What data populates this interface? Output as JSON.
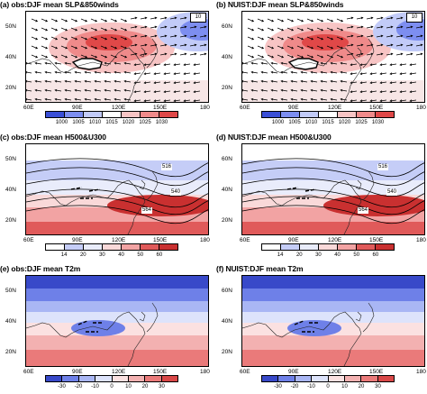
{
  "panels": [
    {
      "id": "a",
      "title": "(a) obs:DJF mean SLP&850winds",
      "type": "slp",
      "ylabels": [
        "50N",
        "40N",
        "20N"
      ],
      "xlabels": [
        "60E",
        "90E",
        "120E",
        "150E",
        "180"
      ],
      "ref_vector": "10",
      "cbar_labels": [
        "1000",
        "1005",
        "1010",
        "1015",
        "1020",
        "1025",
        "1030"
      ]
    },
    {
      "id": "b",
      "title": "(b) NUIST:DJF mean SLP&850winds",
      "type": "slp",
      "ylabels": [
        "60N",
        "40N",
        "20N"
      ],
      "xlabels": [
        "60E",
        "90E",
        "120E",
        "150E",
        "180"
      ],
      "ref_vector": "10",
      "cbar_labels": [
        "1000",
        "1005",
        "1010",
        "1015",
        "1020",
        "1025",
        "1030"
      ]
    },
    {
      "id": "c",
      "title": "(c) obs:DJF mean H500&U300",
      "type": "h500",
      "ylabels": [
        "50N",
        "40N",
        "20N"
      ],
      "xlabels": [
        "60E",
        "90E",
        "120E",
        "150E",
        "180"
      ],
      "contour_labels": [
        "516",
        "540",
        "564"
      ],
      "cbar_labels": [
        "14",
        "20",
        "30",
        "40",
        "50",
        "60"
      ]
    },
    {
      "id": "d",
      "title": "(d) NUIST:DJF mean H500&U300",
      "type": "h500",
      "ylabels": [
        "60N",
        "40N",
        "20N"
      ],
      "xlabels": [
        "60E",
        "90E",
        "120E",
        "150E",
        "180"
      ],
      "contour_labels": [
        "516",
        "540",
        "564"
      ],
      "cbar_labels": [
        "14",
        "20",
        "30",
        "40",
        "50",
        "60"
      ]
    },
    {
      "id": "e",
      "title": "(e) obs:DJF mean T2m",
      "type": "t2m",
      "ylabels": [
        "50N",
        "40N",
        "20N"
      ],
      "xlabels": [
        "60E",
        "90E",
        "120E",
        "150E",
        "180"
      ],
      "cbar_labels": [
        "-30",
        "-20",
        "-10",
        "0",
        "10",
        "20",
        "30"
      ]
    },
    {
      "id": "f",
      "title": "(f) NUIST:DJF mean T2m",
      "type": "t2m",
      "ylabels": [
        "60N",
        "40N",
        "20N"
      ],
      "xlabels": [
        "60E",
        "90E",
        "120E",
        "150E",
        "180"
      ],
      "cbar_labels": [
        "-30",
        "-20",
        "-10",
        "0",
        "10",
        "20",
        "30"
      ]
    }
  ],
  "colors": {
    "slp": [
      "#3a4fd6",
      "#7d8ef0",
      "#c2cbf8",
      "#ffffff",
      "#f7c4c4",
      "#ef8a8a",
      "#e04848"
    ],
    "h500": [
      "#ffffff",
      "#c5cdf7",
      "#e9ecfb",
      "#f9d9d9",
      "#f2a3a3",
      "#e05a5a",
      "#c93030"
    ],
    "t2m": [
      "#3849c9",
      "#6e80e8",
      "#a9b6f4",
      "#dde3fb",
      "#fbe1e1",
      "#f3b1b1",
      "#ea7a7a",
      "#d94848"
    ]
  }
}
